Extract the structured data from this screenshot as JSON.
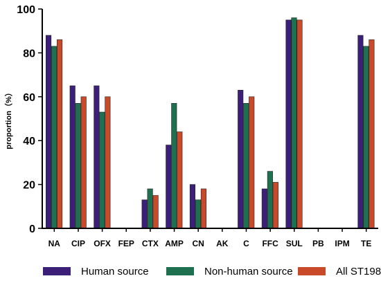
{
  "chart_data": {
    "type": "bar",
    "ylabel": "proportion（%）",
    "ylim": [
      0,
      100
    ],
    "yticks": [
      0,
      20,
      40,
      60,
      80,
      100
    ],
    "grid": false,
    "legend_position": "bottom",
    "categories": [
      "NA",
      "CIP",
      "OFX",
      "FEP",
      "CTX",
      "AMP",
      "CN",
      "AK",
      "C",
      "FFC",
      "SUL",
      "PB",
      "IPM",
      "TE"
    ],
    "series": [
      {
        "name": "Human source",
        "color": "#3b1f78",
        "values": [
          88,
          65,
          65,
          0,
          13,
          38,
          20,
          0,
          63,
          18,
          95,
          0,
          0,
          88
        ]
      },
      {
        "name": "Non-human source",
        "color": "#1f7050",
        "values": [
          83,
          57,
          53,
          0,
          18,
          57,
          13,
          0,
          57,
          26,
          96,
          0,
          0,
          83
        ]
      },
      {
        "name": "All  ST198",
        "color": "#c84a2a",
        "values": [
          86,
          60,
          60,
          0,
          15,
          44,
          18,
          0,
          60,
          21,
          95,
          0,
          0,
          86
        ]
      }
    ]
  }
}
